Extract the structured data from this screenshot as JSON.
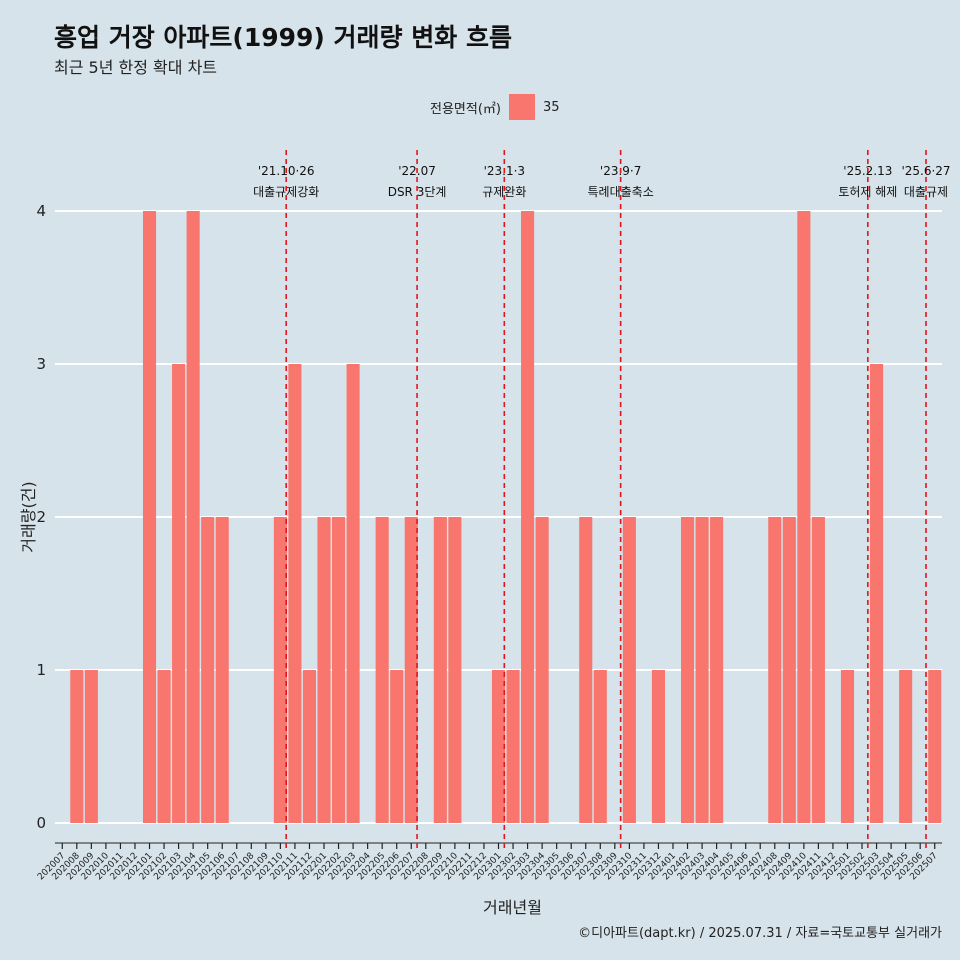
{
  "title": "흥업 거장 아파트(1999) 거래량 변화 흐름",
  "subtitle": "최근 5년 한정 확대 차트",
  "caption": "©디아파트(dapt.kr) / 2025.07.31 / 자료=국토교통부 실거래가",
  "chart_data": {
    "type": "bar",
    "xlabel": "거래년월",
    "ylabel": "거래량(건)",
    "ylim": [
      0,
      4
    ],
    "yticks": [
      0,
      1,
      2,
      3,
      4
    ],
    "legend": {
      "title": "전용면적(㎡)",
      "position": "top",
      "entries": [
        {
          "label": "35",
          "color": "#f8766d"
        }
      ]
    },
    "categories": [
      "202007",
      "202008",
      "202009",
      "202010",
      "202011",
      "202012",
      "202101",
      "202102",
      "202103",
      "202104",
      "202105",
      "202106",
      "202107",
      "202108",
      "202109",
      "202110",
      "202111",
      "202112",
      "202201",
      "202202",
      "202203",
      "202204",
      "202205",
      "202206",
      "202207",
      "202208",
      "202209",
      "202210",
      "202211",
      "202212",
      "202301",
      "202302",
      "202303",
      "202304",
      "202305",
      "202306",
      "202307",
      "202308",
      "202309",
      "202310",
      "202311",
      "202312",
      "202401",
      "202402",
      "202403",
      "202404",
      "202405",
      "202406",
      "202407",
      "202408",
      "202409",
      "202410",
      "202411",
      "202412",
      "202501",
      "202502",
      "202503",
      "202504",
      "202505",
      "202506",
      "202507"
    ],
    "series": [
      {
        "values": [
          0,
          1,
          1,
          0,
          0,
          0,
          4,
          1,
          3,
          4,
          2,
          2,
          0,
          0,
          0,
          2,
          3,
          1,
          2,
          2,
          3,
          0,
          2,
          1,
          2,
          0,
          2,
          2,
          0,
          0,
          1,
          1,
          4,
          2,
          0,
          0,
          2,
          1,
          0,
          2,
          0,
          1,
          0,
          2,
          2,
          2,
          0,
          0,
          0,
          2,
          2,
          4,
          2,
          0,
          1,
          0,
          3,
          0,
          1,
          0,
          1
        ],
        "color": "#f8766d"
      }
    ],
    "annotations": [
      {
        "x": 15.4,
        "line1": "'21.10·26",
        "line2": "대출규제강화"
      },
      {
        "x": 24.4,
        "line1": "'22.07",
        "line2": "DSR 3단계"
      },
      {
        "x": 30.4,
        "line1": "'23.1·3",
        "line2": "규제완화"
      },
      {
        "x": 38.4,
        "line1": "'23.9·7",
        "line2": "특례대출축소"
      },
      {
        "x": 55.4,
        "line1": "'25.2.13",
        "line2": "토허제 해제"
      },
      {
        "x": 59.4,
        "line1": "'25.6·27",
        "line2": "대출규제"
      }
    ]
  }
}
